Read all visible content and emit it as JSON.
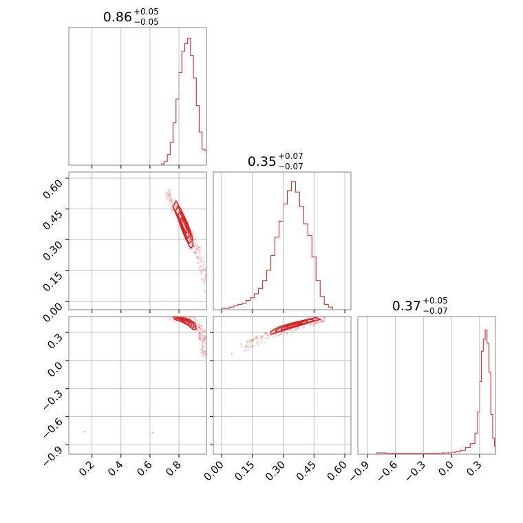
{
  "colors": {
    "series": "#d62728",
    "grid": "#b0b0b0",
    "frame": "#808080",
    "axis_tick": "#000000"
  },
  "chart_data": {
    "type": "corner",
    "parameters": [
      {
        "median": 0.86,
        "plus": 0.05,
        "minus": 0.05,
        "title": {
          "main": "0.86",
          "sup": "+0.05",
          "sub": "−0.05"
        },
        "range": [
          0.04,
          0.99
        ],
        "ticks": [
          0.2,
          0.4,
          0.6,
          0.8
        ],
        "tick_labels": [
          "0.2",
          "0.4",
          "0.6",
          "0.8"
        ],
        "grid": [
          0.2,
          0.4,
          0.6,
          0.8
        ]
      },
      {
        "median": 0.35,
        "plus": 0.07,
        "minus": 0.07,
        "title": {
          "main": "0.35",
          "sup": "+0.07",
          "sub": "−0.07"
        },
        "range": [
          -0.04,
          0.63
        ],
        "ticks": [
          0.0,
          0.15,
          0.3,
          0.45,
          0.6
        ],
        "tick_labels": [
          "0.00",
          "0.15",
          "0.30",
          "0.45",
          "0.60"
        ],
        "grid": [
          0.0,
          0.15,
          0.3,
          0.45,
          0.6
        ]
      },
      {
        "median": 0.37,
        "plus": 0.05,
        "minus": 0.07,
        "title": {
          "main": "0.37",
          "sup": "+0.05",
          "sub": "−0.07"
        },
        "range": [
          -1.0,
          0.47
        ],
        "ticks": [
          -0.9,
          -0.6,
          -0.3,
          0.0,
          0.3
        ],
        "tick_labels": [
          "−0.9",
          "−0.6",
          "−0.3",
          "0.0",
          "0.3"
        ],
        "grid": [
          -0.9,
          -0.6,
          -0.3,
          0.0,
          0.3
        ]
      }
    ],
    "histograms": [
      {
        "param": 0,
        "edges": [
          0.68,
          0.7,
          0.72,
          0.74,
          0.76,
          0.78,
          0.8,
          0.82,
          0.84,
          0.86,
          0.88,
          0.9,
          0.92,
          0.94,
          0.96,
          0.98,
          0.99
        ],
        "counts": [
          0.01,
          0.03,
          0.08,
          0.17,
          0.32,
          0.5,
          0.7,
          0.86,
          0.92,
          0.96,
          0.83,
          0.66,
          0.45,
          0.25,
          0.12,
          0.11
        ]
      },
      {
        "param": 1,
        "edges": [
          0.0,
          0.02,
          0.04,
          0.06,
          0.08,
          0.1,
          0.12,
          0.14,
          0.16,
          0.18,
          0.2,
          0.22,
          0.24,
          0.26,
          0.28,
          0.3,
          0.32,
          0.34,
          0.36,
          0.38,
          0.4,
          0.42,
          0.44,
          0.46,
          0.48,
          0.5,
          0.52,
          0.54
        ],
        "counts": [
          0.01,
          0.01,
          0.02,
          0.03,
          0.04,
          0.05,
          0.07,
          0.09,
          0.12,
          0.16,
          0.22,
          0.3,
          0.41,
          0.55,
          0.67,
          0.8,
          0.9,
          0.97,
          0.89,
          0.78,
          0.65,
          0.56,
          0.4,
          0.22,
          0.1,
          0.04,
          0.02
        ]
      },
      {
        "param": 2,
        "edges": [
          -0.8,
          -0.7,
          -0.6,
          -0.5,
          -0.4,
          -0.3,
          -0.2,
          -0.1,
          0.0,
          0.05,
          0.1,
          0.15,
          0.2,
          0.25,
          0.28,
          0.3,
          0.32,
          0.34,
          0.36,
          0.38,
          0.4,
          0.42,
          0.44,
          0.46,
          0.47
        ],
        "counts": [
          0.01,
          0.005,
          0.005,
          0.005,
          0.005,
          0.005,
          0.005,
          0.01,
          0.015,
          0.02,
          0.03,
          0.05,
          0.08,
          0.16,
          0.32,
          0.55,
          0.78,
          0.87,
          0.94,
          0.84,
          0.62,
          0.3,
          0.12,
          0.06
        ]
      }
    ],
    "scatter_panels": [
      {
        "x_param": 0,
        "y_param": 1,
        "trend": [
          [
            0.71,
            0.54
          ],
          [
            0.76,
            0.48
          ],
          [
            0.8,
            0.43
          ],
          [
            0.84,
            0.38
          ],
          [
            0.88,
            0.32
          ],
          [
            0.91,
            0.27
          ],
          [
            0.94,
            0.22
          ],
          [
            0.97,
            0.15
          ],
          [
            0.99,
            0.08
          ]
        ],
        "contour": [
          [
            0.78,
            0.49
          ],
          [
            0.82,
            0.44
          ],
          [
            0.86,
            0.38
          ],
          [
            0.89,
            0.32
          ],
          [
            0.9,
            0.27
          ],
          [
            0.88,
            0.26
          ],
          [
            0.85,
            0.3
          ],
          [
            0.82,
            0.35
          ],
          [
            0.79,
            0.41
          ],
          [
            0.76,
            0.46
          ]
        ],
        "outliers": [
          [
            0.98,
            0.05
          ]
        ]
      },
      {
        "x_param": 0,
        "y_param": 2,
        "trend": [
          [
            0.73,
            0.47
          ],
          [
            0.8,
            0.46
          ],
          [
            0.85,
            0.44
          ],
          [
            0.89,
            0.41
          ],
          [
            0.92,
            0.37
          ],
          [
            0.95,
            0.31
          ],
          [
            0.97,
            0.23
          ],
          [
            0.98,
            0.12
          ],
          [
            0.99,
            0.03
          ]
        ],
        "contour": [
          [
            0.76,
            0.47
          ],
          [
            0.82,
            0.46
          ],
          [
            0.87,
            0.44
          ],
          [
            0.91,
            0.4
          ],
          [
            0.92,
            0.34
          ],
          [
            0.9,
            0.33
          ],
          [
            0.86,
            0.38
          ],
          [
            0.81,
            0.42
          ],
          [
            0.77,
            0.44
          ]
        ],
        "outliers": [
          [
            0.15,
            -0.76
          ],
          [
            0.62,
            -0.77
          ],
          [
            0.98,
            0.1
          ]
        ]
      },
      {
        "x_param": 1,
        "y_param": 2,
        "trend": [
          [
            0.1,
            0.13
          ],
          [
            0.16,
            0.2
          ],
          [
            0.22,
            0.26
          ],
          [
            0.28,
            0.31
          ],
          [
            0.34,
            0.35
          ],
          [
            0.4,
            0.39
          ],
          [
            0.46,
            0.43
          ],
          [
            0.5,
            0.45
          ]
        ],
        "contour": [
          [
            0.24,
            0.28
          ],
          [
            0.3,
            0.32
          ],
          [
            0.36,
            0.36
          ],
          [
            0.42,
            0.4
          ],
          [
            0.48,
            0.44
          ],
          [
            0.46,
            0.46
          ],
          [
            0.4,
            0.43
          ],
          [
            0.34,
            0.4
          ],
          [
            0.28,
            0.36
          ],
          [
            0.24,
            0.31
          ]
        ],
        "outliers": [
          [
            0.05,
            0.07
          ],
          [
            0.12,
            0.15
          ]
        ]
      }
    ]
  }
}
